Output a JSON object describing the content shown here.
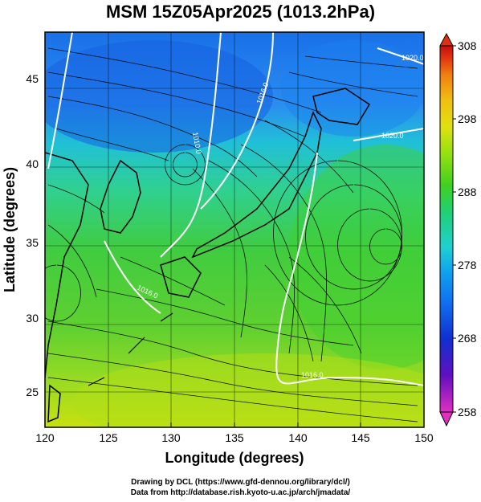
{
  "title": "MSM 15Z05Apr2025 (1013.2hPa)",
  "x_axis": {
    "label": "Longitude (degrees)",
    "ticks": [
      "120",
      "125",
      "130",
      "135",
      "140",
      "145",
      "150"
    ],
    "range": [
      120,
      150
    ]
  },
  "y_axis": {
    "label": "Latitude  (degrees)",
    "ticks": [
      "25",
      "30",
      "35",
      "40",
      "45"
    ],
    "range": [
      22.4,
      47.6
    ]
  },
  "colorbar": {
    "ticks": [
      "258",
      "268",
      "278",
      "288",
      "298",
      "308"
    ],
    "range": [
      258,
      308
    ],
    "colors": [
      "#e030c0",
      "#6010c0",
      "#1030d0",
      "#1070f0",
      "#10a0f0",
      "#20d0d0",
      "#20d070",
      "#40d020",
      "#90e010",
      "#e0e010",
      "#f0c010",
      "#f08010",
      "#e03010",
      "#c01010"
    ]
  },
  "contour_labels": [
    "1010.0",
    "1016.0",
    "1016.0",
    "1016.0",
    "1020.0",
    "1020.0"
  ],
  "credits": {
    "line1": "Drawing by DCL (https://www.gfd-dennou.org/library/dcl/)",
    "line2": "Data from http://database.rish.kyoto-u.ac.jp/arch/jmadata/"
  }
}
